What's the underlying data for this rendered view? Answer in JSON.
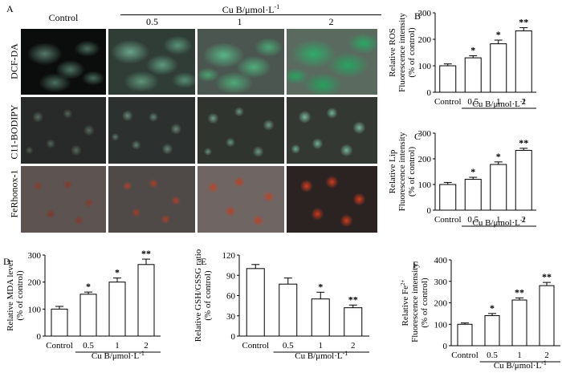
{
  "panel_a": {
    "letter": "A",
    "columns": [
      "Control",
      "0.5",
      "1",
      "2"
    ],
    "treatment_label": "Cu B/μmol·L",
    "treatment_exp": "-1",
    "rows": [
      "DCF-DA",
      "C11-BODIPY",
      "FeRhonox-1"
    ]
  },
  "chart_data": [
    {
      "id": "B",
      "type": "bar",
      "letter": "B",
      "categories": [
        "Control",
        "0.5",
        "1",
        "2"
      ],
      "values": [
        100,
        130,
        183,
        232
      ],
      "errors": [
        7,
        8,
        14,
        12
      ],
      "significance": [
        "",
        "*",
        "*",
        "**"
      ],
      "ylabel_lines": [
        "Relative ROS",
        "Fluorescence intensity",
        "(% of control)"
      ],
      "xlabel": "Cu B/μmol·L",
      "xlabel_exp": "-1",
      "ylim": [
        0,
        300
      ],
      "yticks": [
        0,
        100,
        200,
        300
      ]
    },
    {
      "id": "C",
      "type": "bar",
      "letter": "C",
      "categories": [
        "Control",
        "0.5",
        "1",
        "2"
      ],
      "values": [
        100,
        120,
        178,
        233
      ],
      "errors": [
        8,
        8,
        10,
        8
      ],
      "significance": [
        "",
        "*",
        "*",
        "**"
      ],
      "ylabel_lines": [
        "Relative Lip",
        "Fluorescence intensity",
        "(% of control)"
      ],
      "xlabel": "Cu B/μmol·L",
      "xlabel_exp": "-1",
      "ylim": [
        0,
        300
      ],
      "yticks": [
        0,
        100,
        200,
        300
      ]
    },
    {
      "id": "D",
      "type": "bar",
      "letter": "D",
      "categories": [
        "Control",
        "0.5",
        "1",
        "2"
      ],
      "values": [
        100,
        155,
        200,
        265
      ],
      "errors": [
        10,
        8,
        15,
        20
      ],
      "significance": [
        "",
        "*",
        "*",
        "**"
      ],
      "ylabel_lines": [
        "Relative MDA level",
        "(% of control)"
      ],
      "xlabel": "Cu B/μmol·L",
      "xlabel_exp": "-1",
      "ylim": [
        0,
        300
      ],
      "yticks": [
        0,
        100,
        200,
        300
      ]
    },
    {
      "id": "E",
      "type": "bar",
      "letter": "E",
      "categories": [
        "Control",
        "0.5",
        "1",
        "2"
      ],
      "values": [
        100,
        77,
        55,
        42
      ],
      "errors": [
        6,
        9,
        10,
        4
      ],
      "significance": [
        "",
        "",
        "*",
        "**"
      ],
      "ylabel_lines": [
        "Relative GSH/GSSG ratio",
        "(% of control)"
      ],
      "xlabel": "Cu B/μmol·L",
      "xlabel_exp": "-1",
      "ylim": [
        0,
        120
      ],
      "yticks": [
        0,
        30,
        60,
        90,
        120
      ]
    },
    {
      "id": "F",
      "type": "bar",
      "letter": "F",
      "categories": [
        "Control",
        "0.5",
        "1",
        "2"
      ],
      "values": [
        100,
        140,
        213,
        280
      ],
      "errors": [
        6,
        10,
        10,
        15
      ],
      "significance": [
        "",
        "*",
        "**",
        "**"
      ],
      "ylabel_lines": [
        "Relative Fe",
        "Fluorescence intensity",
        "(% of control)"
      ],
      "ylabel_sup": "2+",
      "xlabel": "Cu B/μmol·L",
      "xlabel_exp": "-1",
      "ylim": [
        0,
        400
      ],
      "yticks": [
        0,
        100,
        200,
        300,
        400
      ]
    }
  ]
}
